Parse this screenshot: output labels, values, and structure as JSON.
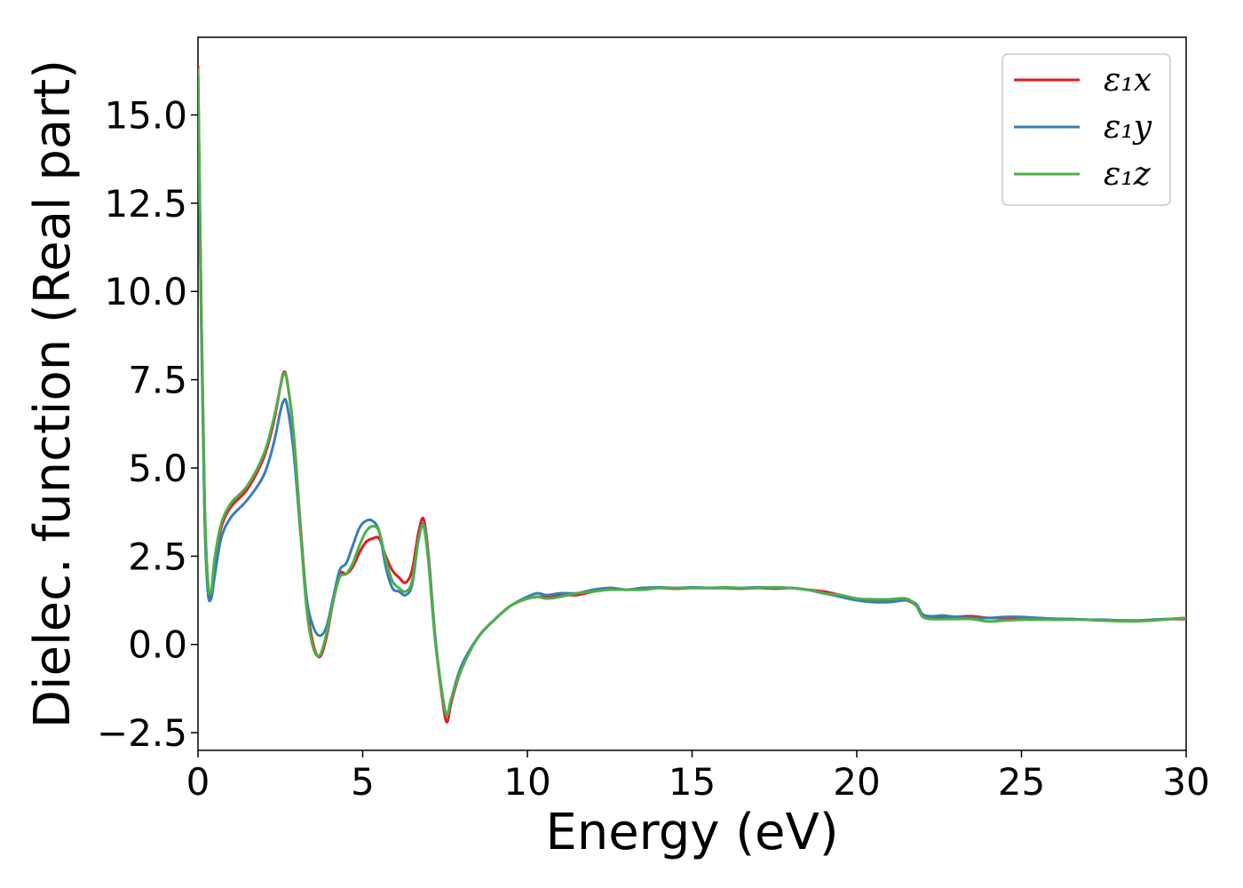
{
  "chart_data": {
    "type": "line",
    "title": "",
    "xlabel": "Energy (eV)",
    "ylabel": "Dielec. function (Real part)",
    "xlim": [
      0,
      30
    ],
    "ylim": [
      -3.0,
      17.2
    ],
    "xticks": [
      0,
      5,
      10,
      15,
      20,
      25,
      30
    ],
    "xtick_labels": [
      "0",
      "5",
      "10",
      "15",
      "20",
      "25",
      "30"
    ],
    "yticks": [
      -2.5,
      0.0,
      2.5,
      5.0,
      7.5,
      10.0,
      12.5,
      15.0
    ],
    "ytick_labels": [
      "−2.5",
      "0.0",
      "2.5",
      "5.0",
      "7.5",
      "10.0",
      "12.5",
      "15.0"
    ],
    "grid": false,
    "legend_position": "top-right",
    "series": [
      {
        "name": "ε₁x",
        "color": "#e41a1c",
        "x": [
          0,
          0.1,
          0.2,
          0.3,
          0.4,
          0.5,
          0.7,
          1.0,
          1.5,
          2.0,
          2.3,
          2.5,
          2.6,
          2.7,
          2.9,
          3.1,
          3.3,
          3.5,
          3.7,
          3.9,
          4.1,
          4.3,
          4.5,
          4.7,
          4.9,
          5.1,
          5.3,
          5.5,
          5.7,
          5.9,
          6.1,
          6.3,
          6.5,
          6.7,
          6.85,
          7.0,
          7.2,
          7.4,
          7.55,
          7.7,
          8.0,
          8.5,
          9.0,
          9.5,
          10.0,
          10.3,
          10.6,
          11.0,
          11.5,
          12.0,
          12.5,
          13.0,
          13.5,
          14.0,
          14.5,
          15.0,
          15.5,
          16.0,
          16.5,
          17.0,
          17.5,
          18.0,
          18.5,
          19.0,
          19.5,
          20.0,
          20.5,
          21.0,
          21.5,
          21.8,
          22.0,
          22.3,
          22.6,
          23.0,
          23.5,
          24.0,
          24.5,
          25.0,
          25.5,
          26.0,
          26.5,
          27.0,
          27.5,
          28.0,
          28.5,
          29.0,
          29.5,
          30.0
        ],
        "values": [
          16.4,
          9.5,
          4.0,
          1.7,
          1.4,
          2.3,
          3.3,
          3.9,
          4.4,
          5.3,
          6.3,
          7.3,
          7.7,
          7.5,
          6.0,
          3.5,
          1.2,
          0.0,
          -0.35,
          0.2,
          1.2,
          2.0,
          2.0,
          2.2,
          2.6,
          2.9,
          3.0,
          3.0,
          2.5,
          2.1,
          1.9,
          1.75,
          2.1,
          3.2,
          3.55,
          2.5,
          0.2,
          -1.4,
          -2.2,
          -1.6,
          -0.7,
          0.2,
          0.7,
          1.1,
          1.3,
          1.35,
          1.35,
          1.4,
          1.4,
          1.5,
          1.6,
          1.55,
          1.6,
          1.6,
          1.58,
          1.6,
          1.6,
          1.6,
          1.58,
          1.6,
          1.58,
          1.6,
          1.55,
          1.5,
          1.4,
          1.3,
          1.25,
          1.25,
          1.25,
          1.1,
          0.8,
          0.75,
          0.75,
          0.78,
          0.8,
          0.75,
          0.75,
          0.75,
          0.75,
          0.72,
          0.72,
          0.7,
          0.68,
          0.68,
          0.67,
          0.7,
          0.72,
          0.72
        ]
      },
      {
        "name": "ε₁y",
        "color": "#377eb8",
        "x": [
          0,
          0.1,
          0.2,
          0.3,
          0.4,
          0.5,
          0.7,
          1.0,
          1.5,
          2.0,
          2.3,
          2.5,
          2.6,
          2.7,
          2.9,
          3.1,
          3.3,
          3.5,
          3.7,
          3.9,
          4.1,
          4.3,
          4.5,
          4.7,
          4.9,
          5.1,
          5.3,
          5.5,
          5.7,
          5.9,
          6.1,
          6.3,
          6.5,
          6.7,
          6.85,
          7.0,
          7.2,
          7.4,
          7.55,
          7.7,
          8.0,
          8.5,
          9.0,
          9.5,
          10.0,
          10.3,
          10.6,
          11.0,
          11.5,
          12.0,
          12.5,
          13.0,
          13.5,
          14.0,
          14.5,
          15.0,
          15.5,
          16.0,
          16.5,
          17.0,
          17.5,
          18.0,
          18.5,
          19.0,
          19.5,
          20.0,
          20.5,
          21.0,
          21.5,
          21.8,
          22.0,
          22.3,
          22.6,
          23.0,
          23.5,
          24.0,
          24.5,
          25.0,
          25.5,
          26.0,
          26.5,
          27.0,
          27.5,
          28.0,
          28.5,
          29.0,
          29.5,
          30.0
        ],
        "values": [
          16.2,
          9.0,
          3.6,
          1.5,
          1.3,
          1.9,
          3.0,
          3.6,
          4.1,
          4.8,
          5.7,
          6.6,
          6.9,
          6.8,
          5.5,
          3.3,
          1.3,
          0.5,
          0.25,
          0.5,
          1.3,
          2.1,
          2.3,
          2.8,
          3.3,
          3.5,
          3.5,
          3.2,
          2.2,
          1.6,
          1.5,
          1.4,
          1.7,
          3.0,
          3.4,
          2.4,
          0.2,
          -1.3,
          -2.0,
          -1.5,
          -0.6,
          0.2,
          0.7,
          1.1,
          1.35,
          1.45,
          1.4,
          1.45,
          1.45,
          1.55,
          1.6,
          1.55,
          1.6,
          1.62,
          1.6,
          1.62,
          1.6,
          1.6,
          1.6,
          1.62,
          1.6,
          1.6,
          1.55,
          1.45,
          1.35,
          1.25,
          1.2,
          1.2,
          1.25,
          1.15,
          0.85,
          0.8,
          0.82,
          0.78,
          0.75,
          0.75,
          0.78,
          0.78,
          0.75,
          0.73,
          0.72,
          0.7,
          0.7,
          0.68,
          0.68,
          0.7,
          0.72,
          0.75
        ]
      },
      {
        "name": "ε₁z",
        "color": "#4daf4a",
        "x": [
          0,
          0.1,
          0.2,
          0.3,
          0.4,
          0.5,
          0.7,
          1.0,
          1.5,
          2.0,
          2.3,
          2.5,
          2.6,
          2.7,
          2.9,
          3.1,
          3.3,
          3.5,
          3.7,
          3.9,
          4.1,
          4.3,
          4.5,
          4.7,
          4.9,
          5.1,
          5.3,
          5.5,
          5.7,
          5.9,
          6.1,
          6.3,
          6.5,
          6.7,
          6.85,
          7.0,
          7.2,
          7.4,
          7.55,
          7.7,
          8.0,
          8.5,
          9.0,
          9.5,
          10.0,
          10.3,
          10.6,
          11.0,
          11.5,
          12.0,
          12.5,
          13.0,
          13.5,
          14.0,
          14.5,
          15.0,
          15.5,
          16.0,
          16.5,
          17.0,
          17.5,
          18.0,
          18.5,
          19.0,
          19.5,
          20.0,
          20.5,
          21.0,
          21.5,
          21.8,
          22.0,
          22.3,
          22.6,
          23.0,
          23.5,
          24.0,
          24.5,
          25.0,
          25.5,
          26.0,
          26.5,
          27.0,
          27.5,
          28.0,
          28.5,
          29.0,
          29.5,
          30.0
        ],
        "values": [
          16.3,
          9.4,
          4.1,
          1.8,
          1.5,
          2.4,
          3.4,
          4.0,
          4.5,
          5.4,
          6.4,
          7.3,
          7.65,
          7.5,
          6.0,
          3.4,
          1.0,
          -0.1,
          -0.3,
          0.3,
          1.2,
          1.9,
          2.0,
          2.3,
          2.8,
          3.2,
          3.35,
          3.2,
          2.4,
          1.8,
          1.6,
          1.5,
          1.8,
          3.0,
          3.35,
          2.3,
          0.1,
          -1.3,
          -2.0,
          -1.5,
          -0.7,
          0.2,
          0.7,
          1.1,
          1.3,
          1.35,
          1.3,
          1.35,
          1.45,
          1.5,
          1.55,
          1.55,
          1.55,
          1.6,
          1.6,
          1.6,
          1.6,
          1.62,
          1.6,
          1.6,
          1.62,
          1.6,
          1.55,
          1.45,
          1.4,
          1.3,
          1.28,
          1.28,
          1.3,
          1.1,
          0.78,
          0.72,
          0.72,
          0.72,
          0.72,
          0.65,
          0.68,
          0.7,
          0.7,
          0.7,
          0.7,
          0.7,
          0.68,
          0.66,
          0.66,
          0.68,
          0.72,
          0.75
        ]
      }
    ]
  }
}
